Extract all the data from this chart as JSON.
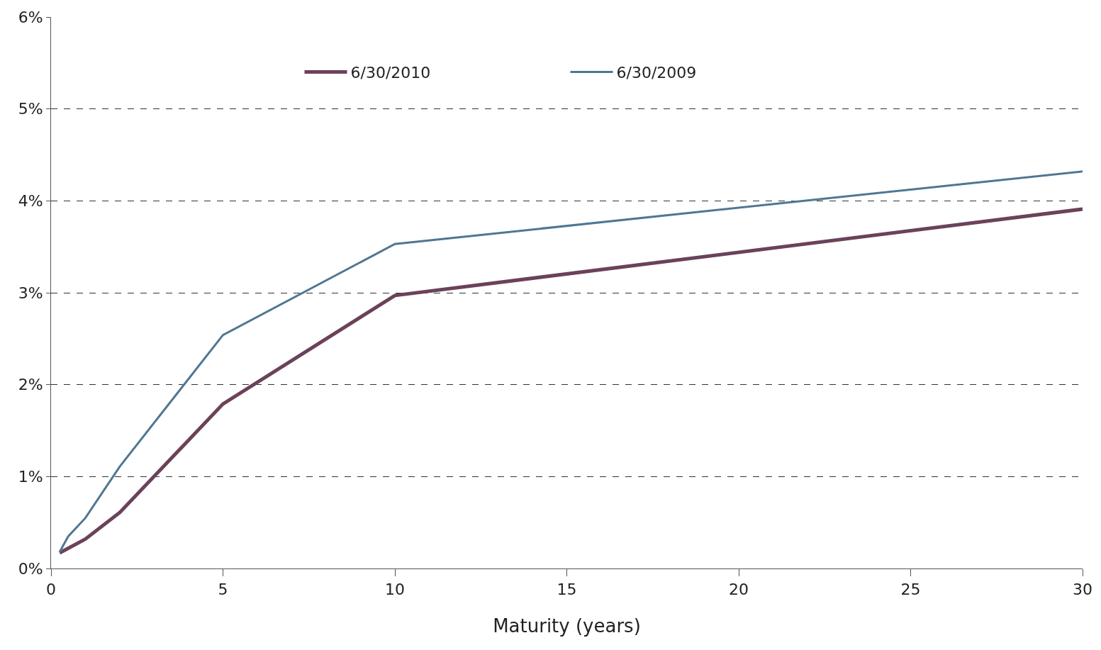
{
  "chart_data": {
    "type": "line",
    "xlabel": "Maturity (years)",
    "x": [
      0.25,
      0.5,
      1,
      2,
      5,
      10,
      30
    ],
    "series": [
      {
        "name": "6/30/2010",
        "color": "#6b4259",
        "values": [
          0.17,
          0.22,
          0.32,
          0.61,
          1.79,
          2.97,
          3.91
        ]
      },
      {
        "name": "6/30/2009",
        "color": "#4f7793",
        "values": [
          0.18,
          0.35,
          0.55,
          1.11,
          2.54,
          3.53,
          4.32
        ]
      }
    ],
    "xlim": [
      0,
      30
    ],
    "xticks": [
      0,
      5,
      10,
      15,
      20,
      25,
      30
    ],
    "ylim": [
      0,
      6
    ],
    "yticks": [
      {
        "value": 0,
        "label": "0%"
      },
      {
        "value": 1,
        "label": "1%"
      },
      {
        "value": 2,
        "label": "2%"
      },
      {
        "value": 3,
        "label": "3%"
      },
      {
        "value": 4,
        "label": "4%"
      },
      {
        "value": 5,
        "label": "5%"
      },
      {
        "value": 6,
        "label": "6%"
      }
    ],
    "grid": "y",
    "legend": "top",
    "marker": "none",
    "line_style": "solid"
  }
}
